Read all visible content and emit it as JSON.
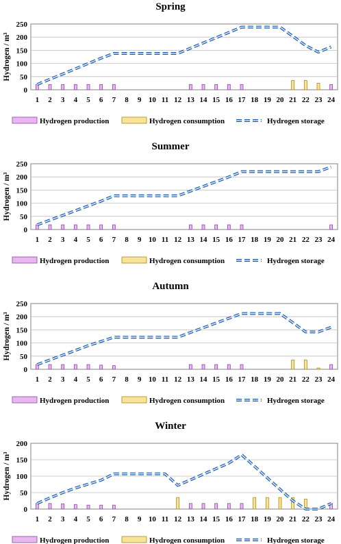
{
  "colors": {
    "production_fill": "#e7b7f0",
    "production_stroke": "#8e44ad",
    "consumption_fill": "#f6e49a",
    "consumption_stroke": "#b8860b",
    "storage_line": "#1f5fb0",
    "storage_fill": "#d6e6f7",
    "axis": "#808080",
    "grid": "#bfbfbf"
  },
  "legend": {
    "production": "Hydrogen production",
    "consumption": "Hydrogen consumption",
    "storage": "Hydrogen storage"
  },
  "chart_data": [
    {
      "type": "bar",
      "title": "Spring",
      "xlabel": "",
      "ylabel": "Hydrogen / m³",
      "categories": [
        "1",
        "2",
        "3",
        "4",
        "5",
        "6",
        "7",
        "8",
        "9",
        "10",
        "11",
        "12",
        "13",
        "14",
        "15",
        "16",
        "17",
        "18",
        "19",
        "20",
        "21",
        "22",
        "23",
        "24"
      ],
      "ylim": [
        0,
        250
      ],
      "yticks": [
        0,
        50,
        100,
        150,
        200,
        250
      ],
      "grid": true,
      "legend_position": "bottom",
      "series": [
        {
          "name": "Hydrogen production",
          "kind": "bar",
          "values": [
            20,
            20,
            20,
            20,
            20,
            20,
            20,
            0,
            0,
            0,
            0,
            0,
            20,
            20,
            20,
            20,
            20,
            0,
            0,
            0,
            0,
            0,
            0,
            20
          ]
        },
        {
          "name": "Hydrogen consumption",
          "kind": "bar",
          "values": [
            0,
            0,
            0,
            0,
            0,
            0,
            0,
            0,
            0,
            0,
            0,
            0,
            0,
            0,
            0,
            0,
            0,
            0,
            0,
            0,
            35,
            35,
            25,
            0
          ]
        },
        {
          "name": "Hydrogen storage",
          "kind": "line",
          "values": [
            20,
            40,
            60,
            80,
            100,
            120,
            138,
            138,
            138,
            138,
            138,
            138,
            158,
            178,
            198,
            218,
            238,
            238,
            238,
            238,
            203,
            168,
            143,
            163
          ]
        }
      ]
    },
    {
      "type": "bar",
      "title": "Summer",
      "xlabel": "",
      "ylabel": "Hydrogen / m³",
      "categories": [
        "1",
        "2",
        "3",
        "4",
        "5",
        "6",
        "7",
        "8",
        "9",
        "10",
        "11",
        "12",
        "13",
        "14",
        "15",
        "16",
        "17",
        "18",
        "19",
        "20",
        "21",
        "22",
        "23",
        "24"
      ],
      "ylim": [
        0,
        250
      ],
      "yticks": [
        0,
        50,
        100,
        150,
        200,
        250
      ],
      "grid": true,
      "legend_position": "bottom",
      "series": [
        {
          "name": "Hydrogen production",
          "kind": "bar",
          "values": [
            18,
            18,
            18,
            18,
            18,
            18,
            18,
            0,
            0,
            0,
            0,
            0,
            18,
            18,
            18,
            18,
            18,
            0,
            0,
            0,
            0,
            0,
            0,
            18
          ]
        },
        {
          "name": "Hydrogen consumption",
          "kind": "bar",
          "values": [
            0,
            0,
            0,
            0,
            0,
            0,
            0,
            0,
            0,
            0,
            0,
            0,
            0,
            0,
            0,
            0,
            0,
            0,
            0,
            0,
            0,
            0,
            0,
            0
          ]
        },
        {
          "name": "Hydrogen storage",
          "kind": "line",
          "values": [
            18,
            36,
            54,
            72,
            90,
            108,
            128,
            128,
            128,
            128,
            128,
            128,
            146,
            164,
            182,
            200,
            220,
            220,
            220,
            220,
            220,
            220,
            220,
            238
          ]
        }
      ]
    },
    {
      "type": "bar",
      "title": "Autumn",
      "xlabel": "",
      "ylabel": "Hydrogen / m³",
      "categories": [
        "1",
        "2",
        "3",
        "4",
        "5",
        "6",
        "7",
        "8",
        "9",
        "10",
        "11",
        "12",
        "13",
        "14",
        "15",
        "16",
        "17",
        "18",
        "19",
        "20",
        "21",
        "22",
        "23",
        "24"
      ],
      "ylim": [
        0,
        250
      ],
      "yticks": [
        0,
        50,
        100,
        150,
        200,
        250
      ],
      "grid": true,
      "legend_position": "bottom",
      "series": [
        {
          "name": "Hydrogen production",
          "kind": "bar",
          "values": [
            18,
            18,
            18,
            18,
            18,
            16,
            14,
            0,
            0,
            0,
            0,
            0,
            18,
            18,
            18,
            18,
            18,
            0,
            0,
            0,
            0,
            0,
            0,
            18
          ]
        },
        {
          "name": "Hydrogen consumption",
          "kind": "bar",
          "values": [
            0,
            0,
            0,
            0,
            0,
            0,
            0,
            0,
            0,
            0,
            0,
            0,
            0,
            0,
            0,
            0,
            0,
            0,
            0,
            0,
            35,
            35,
            5,
            0
          ]
        },
        {
          "name": "Hydrogen storage",
          "kind": "line",
          "values": [
            18,
            36,
            54,
            72,
            90,
            106,
            122,
            122,
            122,
            122,
            122,
            122,
            140,
            158,
            176,
            194,
            212,
            212,
            212,
            212,
            177,
            142,
            142,
            160
          ]
        }
      ]
    },
    {
      "type": "bar",
      "title": "Winter",
      "xlabel": "",
      "ylabel": "Hydrogen / m³",
      "categories": [
        "1",
        "2",
        "3",
        "4",
        "5",
        "6",
        "7",
        "8",
        "9",
        "10",
        "11",
        "12",
        "13",
        "14",
        "15",
        "16",
        "17",
        "18",
        "19",
        "20",
        "21",
        "22",
        "23",
        "24"
      ],
      "ylim": [
        0,
        200
      ],
      "yticks": [
        0,
        50,
        100,
        150,
        200
      ],
      "grid": true,
      "legend_position": "bottom",
      "series": [
        {
          "name": "Hydrogen production",
          "kind": "bar",
          "values": [
            17,
            17,
            16,
            14,
            12,
            12,
            12,
            0,
            0,
            0,
            0,
            0,
            17,
            17,
            17,
            17,
            17,
            0,
            0,
            0,
            0,
            0,
            0,
            17
          ]
        },
        {
          "name": "Hydrogen consumption",
          "kind": "bar",
          "values": [
            0,
            0,
            0,
            0,
            0,
            0,
            0,
            0,
            0,
            0,
            0,
            35,
            0,
            0,
            0,
            0,
            0,
            35,
            35,
            35,
            35,
            30,
            0,
            0
          ]
        },
        {
          "name": "Hydrogen storage",
          "kind": "line",
          "values": [
            17,
            34,
            50,
            64,
            76,
            88,
            107,
            107,
            107,
            107,
            107,
            72,
            89,
            106,
            123,
            140,
            165,
            130,
            95,
            60,
            25,
            0,
            0,
            17
          ]
        }
      ]
    }
  ]
}
